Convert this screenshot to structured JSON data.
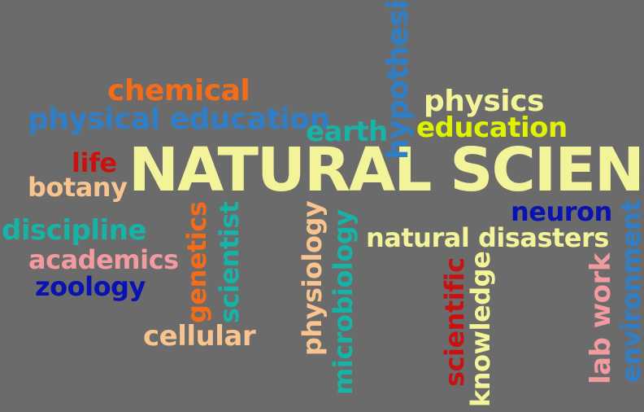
{
  "colors": {
    "background": "#6b6b6b",
    "cream": "#f3f39a",
    "orange": "#f26c1a",
    "blue": "#2f7fc8",
    "teal": "#17b3a6",
    "yellow_green": "#e1f200",
    "red": "#c81212",
    "peach": "#f7c38e",
    "pink": "#f19a9f",
    "navy": "#0a12b0",
    "green": "#18a46b"
  },
  "words": {
    "natural_science": "NATURAL SCIENCE",
    "chemical": "chemical",
    "physical_education": "physical education",
    "earth": "earth",
    "hypothesis": "hypothesis",
    "physics": "physics",
    "education": "education",
    "life": "life",
    "botany": "botany",
    "discipline": "discipline",
    "academics": "academics",
    "zoology": "zoology",
    "genetics": "genetics",
    "scientist": "scientist",
    "cellular": "cellular",
    "physiology": "physiology",
    "microbiology": "microbiology",
    "natural_disasters": "natural disasters",
    "neuron": "neuron",
    "environment": "environment",
    "scientific": "scientific",
    "knowledge": "knowledge",
    "lab_work": "lab work"
  }
}
